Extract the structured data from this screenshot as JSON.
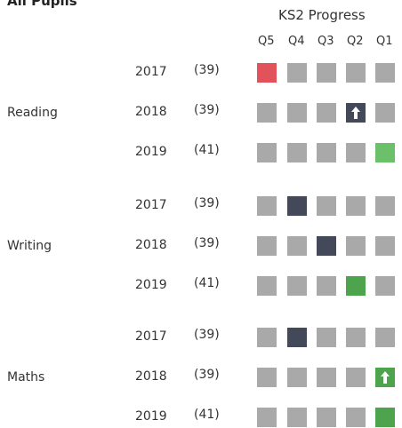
{
  "header": {
    "title": "All Pupils",
    "group_label": "KS2 Progress",
    "columns": [
      "Q5",
      "Q4",
      "Q3",
      "Q2",
      "Q1"
    ]
  },
  "base_color": "#a9a9a9",
  "subjects": [
    {
      "name": "Reading",
      "rows": [
        {
          "year": "2017",
          "count": "(39)",
          "highlight": 0,
          "color": "#e2525a",
          "arrow": false
        },
        {
          "year": "2018",
          "count": "(39)",
          "highlight": 3,
          "color": "#434958",
          "arrow": true
        },
        {
          "year": "2019",
          "count": "(41)",
          "highlight": 4,
          "color": "#6cc06a",
          "arrow": false
        }
      ]
    },
    {
      "name": "Writing",
      "rows": [
        {
          "year": "2017",
          "count": "(39)",
          "highlight": 1,
          "color": "#434958",
          "arrow": false
        },
        {
          "year": "2018",
          "count": "(39)",
          "highlight": 2,
          "color": "#434958",
          "arrow": false
        },
        {
          "year": "2019",
          "count": "(41)",
          "highlight": 3,
          "color": "#4ea44c",
          "arrow": false
        }
      ]
    },
    {
      "name": "Maths",
      "rows": [
        {
          "year": "2017",
          "count": "(39)",
          "highlight": 1,
          "color": "#434958",
          "arrow": false
        },
        {
          "year": "2018",
          "count": "(39)",
          "highlight": 4,
          "color": "#4ea44c",
          "arrow": true
        },
        {
          "year": "2019",
          "count": "(41)",
          "highlight": 4,
          "color": "#4ea44c",
          "arrow": false
        }
      ]
    }
  ]
}
